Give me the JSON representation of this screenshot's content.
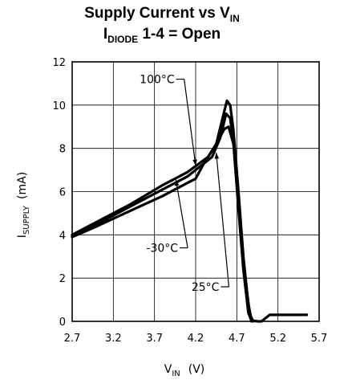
{
  "chart_data": {
    "type": "line",
    "title": "Supply Current vs V",
    "title_sub": "IN",
    "subtitle": "I",
    "subtitle_sub": "DIODE",
    "subtitle_rest": " 1-4 = Open",
    "xlabel": "V",
    "xlabel_sub": "IN",
    "xlabel_unit": "(V)",
    "ylabel": "I",
    "ylabel_sub": "SUPPLY",
    "ylabel_unit": "(mA)",
    "xlim": [
      2.7,
      5.7
    ],
    "ylim": [
      0,
      12
    ],
    "xticks": [
      2.7,
      3.2,
      3.7,
      4.2,
      4.7,
      5.2,
      5.7
    ],
    "yticks": [
      0,
      2,
      4,
      6,
      8,
      10,
      12
    ],
    "grid": true,
    "series": [
      {
        "name": "100°C",
        "points": [
          [
            2.7,
            4.0
          ],
          [
            3.0,
            4.6
          ],
          [
            3.4,
            5.4
          ],
          [
            3.8,
            6.3
          ],
          [
            4.1,
            6.9
          ],
          [
            4.35,
            7.6
          ],
          [
            4.45,
            8.2
          ],
          [
            4.52,
            9.3
          ],
          [
            4.58,
            10.2
          ],
          [
            4.62,
            10.0
          ],
          [
            4.66,
            8.8
          ],
          [
            4.72,
            6.0
          ],
          [
            4.78,
            3.0
          ],
          [
            4.84,
            0.8
          ],
          [
            4.88,
            0.05
          ],
          [
            4.95,
            0
          ],
          [
            5.0,
            0
          ],
          [
            5.1,
            0.3
          ],
          [
            5.55,
            0.3
          ]
        ]
      },
      {
        "name": "25°C",
        "points": [
          [
            2.7,
            3.95
          ],
          [
            3.0,
            4.5
          ],
          [
            3.4,
            5.3
          ],
          [
            3.8,
            6.1
          ],
          [
            4.1,
            6.7
          ],
          [
            4.4,
            7.6
          ],
          [
            4.5,
            8.5
          ],
          [
            4.57,
            9.6
          ],
          [
            4.62,
            9.4
          ],
          [
            4.68,
            7.6
          ],
          [
            4.74,
            4.8
          ],
          [
            4.8,
            2.0
          ],
          [
            4.86,
            0.3
          ],
          [
            4.9,
            0
          ]
        ]
      },
      {
        "name": "-30°C",
        "points": [
          [
            2.7,
            3.9
          ],
          [
            3.0,
            4.4
          ],
          [
            3.4,
            5.1
          ],
          [
            3.8,
            5.8
          ],
          [
            4.1,
            6.4
          ],
          [
            4.2,
            6.6
          ],
          [
            4.3,
            7.3
          ],
          [
            4.45,
            8.2
          ],
          [
            4.55,
            8.9
          ],
          [
            4.6,
            9.0
          ],
          [
            4.66,
            8.2
          ],
          [
            4.72,
            5.2
          ],
          [
            4.78,
            2.4
          ],
          [
            4.84,
            0.4
          ],
          [
            4.88,
            0
          ]
        ]
      }
    ],
    "annotations": [
      {
        "text": "100°C",
        "label_at": [
          3.52,
          11.2
        ],
        "arrow_to": [
          4.2,
          7.2
        ]
      },
      {
        "text": "-30°C",
        "label_at": [
          3.6,
          3.4
        ],
        "arrow_to": [
          3.96,
          6.55
        ]
      },
      {
        "text": "25°C",
        "label_at": [
          4.15,
          1.6
        ],
        "arrow_to": [
          4.45,
          7.8
        ]
      }
    ]
  }
}
